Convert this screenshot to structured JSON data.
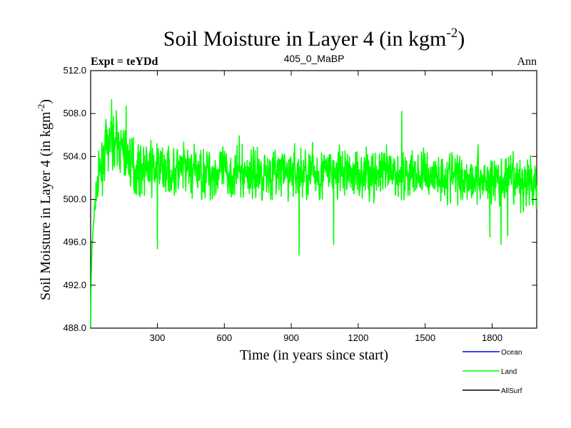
{
  "chart_data": {
    "type": "line",
    "title_main": "Soil Moisture in Layer 4 (in kgm",
    "title_sup": "-2",
    "title_close": ")",
    "subtitle_left": "Expt = teYDd",
    "subtitle_center": "405_0_MaBP",
    "subtitle_right": "Ann",
    "xlabel": "Time (in years since start)",
    "ylabel_main": "Soil Moisture in Layer 4 (in kgm",
    "ylabel_sup": "-2",
    "ylabel_close": ")",
    "xlim": [
      1,
      2000
    ],
    "ylim": [
      488,
      512
    ],
    "xticks": [
      300,
      600,
      900,
      1200,
      1500,
      1800
    ],
    "xtick_labels": [
      "300",
      "600",
      "900",
      "1200",
      "1500",
      "1800"
    ],
    "yticks": [
      488,
      492,
      496,
      500,
      504,
      508,
      512
    ],
    "ytick_labels": [
      "488.0",
      "492.0",
      "496.0",
      "500.0",
      "504.0",
      "508.0",
      "512.0"
    ],
    "series": [
      {
        "name": "Ocean",
        "color": "#0000ff",
        "values": []
      },
      {
        "name": "Land",
        "color": "#00ff00",
        "key_points": [
          [
            1,
            488.5
          ],
          [
            5,
            494
          ],
          [
            12,
            497.5
          ],
          [
            25,
            500.5
          ],
          [
            40,
            502
          ],
          [
            60,
            504
          ],
          [
            80,
            505
          ],
          [
            100,
            505.5
          ],
          [
            130,
            505
          ],
          [
            160,
            504
          ],
          [
            200,
            503
          ],
          [
            300,
            502.8
          ],
          [
            400,
            502.6
          ],
          [
            600,
            502.5
          ],
          [
            900,
            502.5
          ],
          [
            1200,
            502.4
          ],
          [
            1500,
            502.3
          ],
          [
            1700,
            502.1
          ],
          [
            1800,
            501.8
          ],
          [
            1900,
            501.6
          ],
          [
            2000,
            501.5
          ]
        ],
        "noise_amplitude": 1.5,
        "spikes": [
          [
            95,
            509.3
          ],
          [
            160,
            508.7
          ],
          [
            300,
            495.4
          ],
          [
            935,
            494.8
          ],
          [
            1090,
            495.8
          ],
          [
            1395,
            508.2
          ],
          [
            1790,
            496.5
          ],
          [
            1840,
            495.8
          ],
          [
            1870,
            496.6
          ]
        ]
      },
      {
        "name": "AllSurf",
        "color": "#000000",
        "values": []
      }
    ],
    "legend_position": "bottom-right",
    "grid": false
  }
}
